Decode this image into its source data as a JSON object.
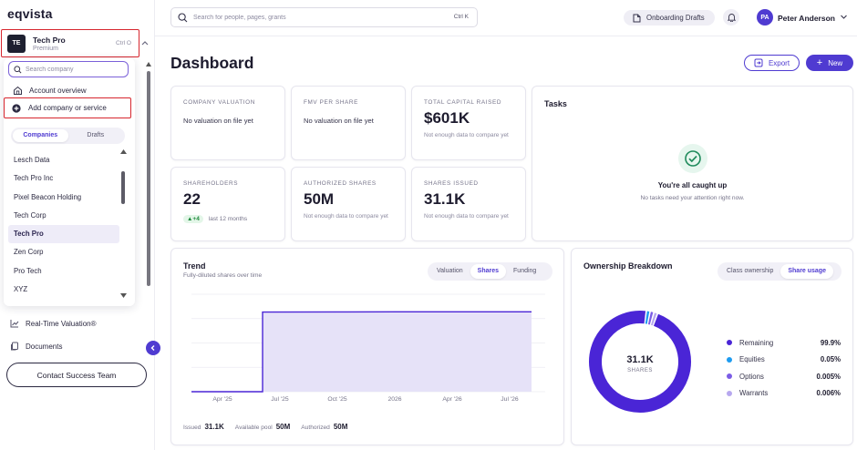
{
  "app": {
    "logo": "eqvista"
  },
  "company_switcher": {
    "initials": "TE",
    "name": "Tech Pro",
    "plan": "Premium",
    "shortcut": "Ctrl O"
  },
  "dropdown": {
    "search_placeholder": "Search company",
    "account_overview": "Account overview",
    "add_company": "Add company or service",
    "tabs": [
      "Companies",
      "Drafts"
    ],
    "active_tab": "Companies",
    "companies": [
      "Lesch Data",
      "Tech Pro Inc",
      "Pixel Beacon Holding",
      "Tech Corp",
      "Tech Pro",
      "Zen Corp",
      "Pro Tech",
      "XYZ"
    ],
    "selected_company": "Tech Pro"
  },
  "sidebar": {
    "items": [
      {
        "label": "Real-Time Valuation®",
        "icon": "line-chart-icon"
      },
      {
        "label": "Documents",
        "icon": "documents-icon"
      }
    ],
    "contact_button": "Contact Success Team"
  },
  "topbar": {
    "search_placeholder": "Search for people, pages, grants",
    "search_shortcut": "Ctrl K",
    "onboarding_label": "Onboarding Drafts",
    "user_initials": "PA",
    "user_name": "Peter Anderson"
  },
  "page": {
    "title": "Dashboard",
    "export_label": "Export",
    "new_label": "New"
  },
  "kpis": {
    "company_valuation": {
      "label": "COMPANY VALUATION",
      "text": "No valuation on file yet"
    },
    "fmv_per_share": {
      "label": "FMV PER SHARE",
      "text": "No valuation on file yet"
    },
    "total_capital_raised": {
      "label": "TOTAL CAPITAL RAISED",
      "value": "$601K",
      "note": "Not enough data to compare yet"
    },
    "shareholders": {
      "label": "SHAREHOLDERS",
      "value": "22",
      "change": "▲+4",
      "period": "last 12 months"
    },
    "authorized_shares": {
      "label": "AUTHORIZED SHARES",
      "value": "50M",
      "note": "Not enough data to compare yet"
    },
    "shares_issued": {
      "label": "SHARES ISSUED",
      "value": "31.1K",
      "note": "Not enough data to compare yet"
    }
  },
  "tasks": {
    "title": "Tasks",
    "heading": "You're all caught up",
    "subtext": "No tasks need your attention right now."
  },
  "trend": {
    "title": "Trend",
    "subtitle": "Fully-diluted shares over time",
    "tabs": [
      "Valuation",
      "Shares",
      "Funding"
    ],
    "active_tab": "Shares",
    "footer": {
      "issued_label": "Issued",
      "issued_value": "31.1K",
      "pool_label": "Available pool",
      "pool_value": "50M",
      "authorized_label": "Authorized",
      "authorized_value": "50M"
    }
  },
  "ownership": {
    "title": "Ownership Breakdown",
    "tabs": [
      "Class ownership",
      "Share usage"
    ],
    "active_tab": "Share usage",
    "center_value": "31.1K",
    "center_label": "SHARES",
    "legend": [
      {
        "name": "Remaining",
        "pct": "99.9%",
        "color": "#4a25d6"
      },
      {
        "name": "Equities",
        "pct": "0.05%",
        "color": "#1d9bf0"
      },
      {
        "name": "Options",
        "pct": "0.005%",
        "color": "#7b5ce6"
      },
      {
        "name": "Warrants",
        "pct": "0.006%",
        "color": "#b7a8ef"
      }
    ]
  },
  "chart_data": [
    {
      "type": "area",
      "title": "Trend",
      "subtitle": "Fully-diluted shares over time",
      "x": [
        "Apr '25",
        "Jul '25",
        "Oct '25",
        "2026",
        "Apr '26",
        "Jul '26"
      ],
      "series": [
        {
          "values": [
            0,
            31000,
            31050,
            31080,
            31100,
            31100
          ]
        }
      ],
      "step_at": "Jul '25"
    },
    {
      "type": "pie",
      "title": "Ownership Breakdown",
      "labels": [
        "Remaining",
        "Equities",
        "Options",
        "Warrants"
      ],
      "values": [
        99.9,
        0.05,
        0.005,
        0.006
      ],
      "colors": [
        "#4a25d6",
        "#1d9bf0",
        "#7b5ce6",
        "#b7a8ef"
      ]
    }
  ]
}
